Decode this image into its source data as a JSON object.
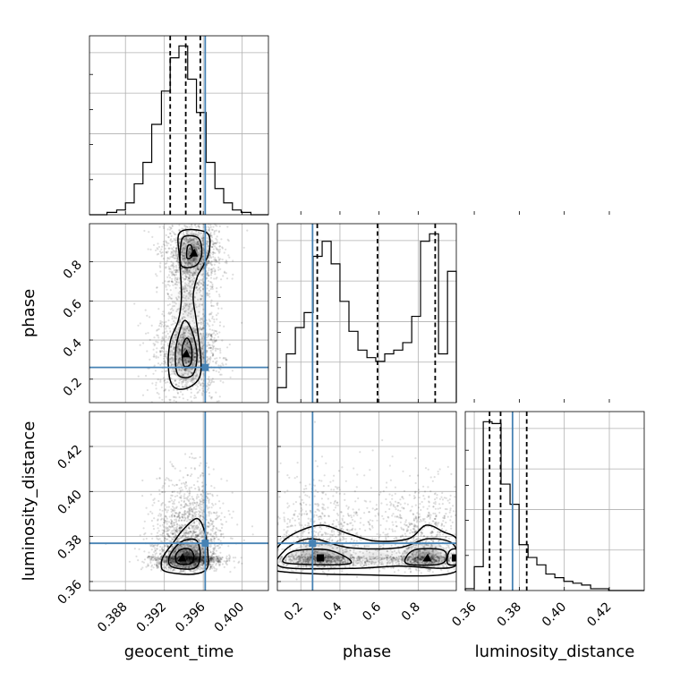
{
  "colors": {
    "truth": "#4682b4",
    "line": "#000000",
    "grid": "#b0b0b0"
  },
  "chart_data": {
    "type": "corner",
    "parameters": [
      "geocent_time",
      "phase",
      "luminosity_distance"
    ],
    "labels": [
      "geocent_time",
      "phase",
      "luminosity_distance"
    ],
    "truths": [
      0.3962,
      0.26,
      0.377
    ],
    "ranges": [
      [
        0.3843,
        0.4027
      ],
      [
        0.08,
        0.995
      ],
      [
        0.356,
        0.4355
      ]
    ],
    "ticks": [
      {
        "values": [
          0.388,
          0.392,
          0.396,
          0.4
        ],
        "labels": [
          "0.388",
          "0.392",
          "0.396",
          "0.400"
        ]
      },
      {
        "values": [
          0.2,
          0.4,
          0.6,
          0.8
        ],
        "labels": [
          "0.2",
          "0.4",
          "0.6",
          "0.8"
        ]
      },
      {
        "values": [
          0.36,
          0.38,
          0.4,
          0.42
        ],
        "labels": [
          "0.36",
          "0.38",
          "0.40",
          "0.42"
        ]
      }
    ],
    "histograms": [
      {
        "parameter": "geocent_time",
        "bin_edges": [
          0.3843,
          0.3852,
          0.3861,
          0.3871,
          0.388,
          0.3889,
          0.3898,
          0.3907,
          0.3917,
          0.3926,
          0.3935,
          0.3944,
          0.3953,
          0.3963,
          0.3972,
          0.3981,
          0.399,
          0.3999,
          0.4009,
          0.4018,
          0.4027
        ],
        "counts": [
          0,
          0,
          1,
          2,
          5,
          13,
          22,
          38,
          52,
          66,
          71,
          57,
          43,
          22,
          11,
          5,
          2,
          1,
          0,
          0
        ],
        "quantiles": [
          0.3926,
          0.3942,
          0.3957
        ]
      },
      {
        "parameter": "phase",
        "bin_edges": [
          0.08,
          0.126,
          0.172,
          0.217,
          0.263,
          0.309,
          0.355,
          0.4,
          0.446,
          0.492,
          0.538,
          0.583,
          0.629,
          0.675,
          0.721,
          0.767,
          0.812,
          0.858,
          0.904,
          0.95,
          0.995
        ],
        "counts": [
          4,
          13,
          20,
          24,
          39,
          43,
          37,
          27,
          19,
          14,
          12,
          11,
          13,
          14,
          16,
          23,
          43,
          45,
          13,
          35
        ],
        "quantiles": [
          0.284,
          0.592,
          0.887
        ]
      },
      {
        "parameter": "luminosity_distance",
        "bin_edges": [
          0.356,
          0.36,
          0.364,
          0.3679,
          0.3719,
          0.3759,
          0.3799,
          0.3839,
          0.3878,
          0.3918,
          0.3958,
          0.3998,
          0.4038,
          0.4077,
          0.4117,
          0.4157,
          0.4197,
          0.4237,
          0.4276,
          0.4316,
          0.4355
        ],
        "counts": [
          1,
          13,
          92,
          91,
          58,
          47,
          25,
          18,
          14,
          9,
          7,
          5,
          4,
          3,
          1,
          1,
          0,
          0,
          0,
          0
        ],
        "quantiles": [
          0.3668,
          0.3717,
          0.3833
        ]
      }
    ],
    "modes_2d": [
      {
        "x": "geocent_time",
        "y": "phase",
        "peaks": [
          [
            0.3949,
            0.84
          ],
          [
            0.3942,
            0.33
          ]
        ]
      },
      {
        "x": "geocent_time",
        "y": "luminosity_distance",
        "peaks": [
          [
            0.3938,
            0.3705
          ]
        ]
      },
      {
        "x": "phase",
        "y": "luminosity_distance",
        "peaks": [
          [
            0.3,
            0.3705
          ],
          [
            0.845,
            0.3705
          ],
          [
            0.99,
            0.3705
          ]
        ]
      }
    ],
    "grid": true
  }
}
